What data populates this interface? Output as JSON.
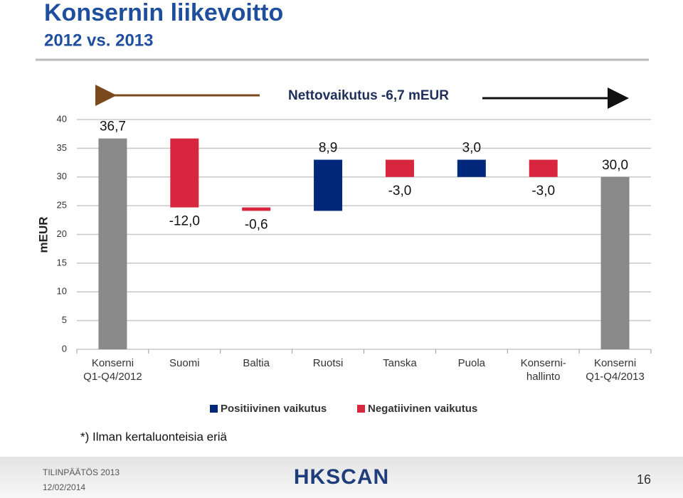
{
  "title": "Konsernin liikevoitto",
  "subtitle": "2012 vs. 2013",
  "chart_data": {
    "type": "waterfall",
    "annotation": "Nettovaikutus -6,7 mEUR",
    "y_label": "mEUR",
    "categories": [
      "Konserni\nQ1-Q4/2012",
      "Suomi",
      "Baltia",
      "Ruotsi",
      "Tanska",
      "Puola",
      "Konserni-\nhallinto",
      "Konserni\nQ1-Q4/2013"
    ],
    "values": [
      36.7,
      -12.0,
      -0.6,
      8.9,
      -3.0,
      3.0,
      -3.0,
      30.0
    ],
    "value_labels": [
      "36,7",
      "-12,0",
      "-0,6",
      "8,9",
      "-3,0",
      "3,0",
      "-3,0",
      "30,0"
    ],
    "is_total": [
      true,
      false,
      false,
      false,
      false,
      false,
      false,
      true
    ],
    "total_color": "#898989",
    "legend": [
      {
        "name": "Positiivinen vaikutus",
        "color": "#00287a"
      },
      {
        "name": "Negatiivinen vaikutus",
        "color": "#d7263d"
      }
    ],
    "ylim": [
      0,
      40
    ],
    "yticks": [
      0,
      5,
      10,
      15,
      20,
      25,
      30,
      35,
      40
    ],
    "grid": true
  },
  "footnote": "*) Ilman kertaluonteisia eriä",
  "footer": {
    "report": "TILINPÄÄTÖS 2013",
    "date": "12/02/2014",
    "logo": "HKSCAN",
    "page": "16"
  }
}
